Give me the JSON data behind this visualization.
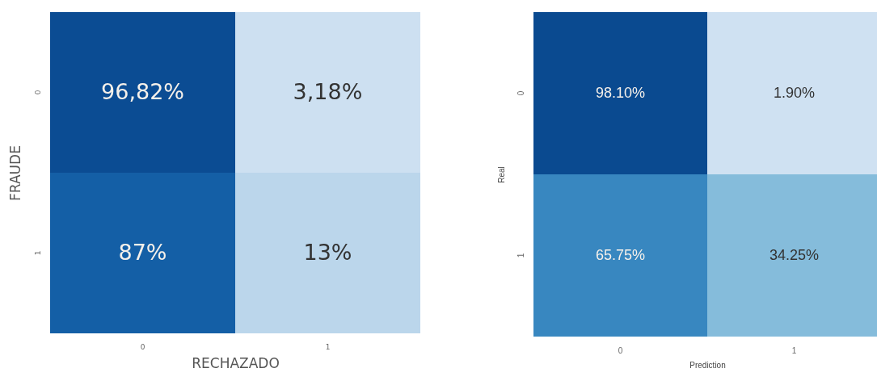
{
  "chart_data": [
    {
      "type": "heatmap",
      "xlabel": "RECHAZADO",
      "ylabel": "FRAUDE",
      "categories": [
        "0",
        "1"
      ],
      "y_categories": [
        "0",
        "1"
      ],
      "cells": [
        [
          96.82,
          3.18
        ],
        [
          87,
          13
        ]
      ],
      "cell_labels": [
        [
          "96,82%",
          "3,18%"
        ],
        [
          "87%",
          "13%"
        ]
      ]
    },
    {
      "type": "heatmap",
      "xlabel": "Prediction",
      "ylabel": "Real",
      "categories": [
        "0",
        "1"
      ],
      "y_categories": [
        "0",
        "1"
      ],
      "cells": [
        [
          98.1,
          1.9
        ],
        [
          65.75,
          34.25
        ]
      ],
      "cell_labels": [
        [
          "98.10%",
          "1.90%"
        ],
        [
          "65.75%",
          "34.25%"
        ]
      ]
    }
  ]
}
